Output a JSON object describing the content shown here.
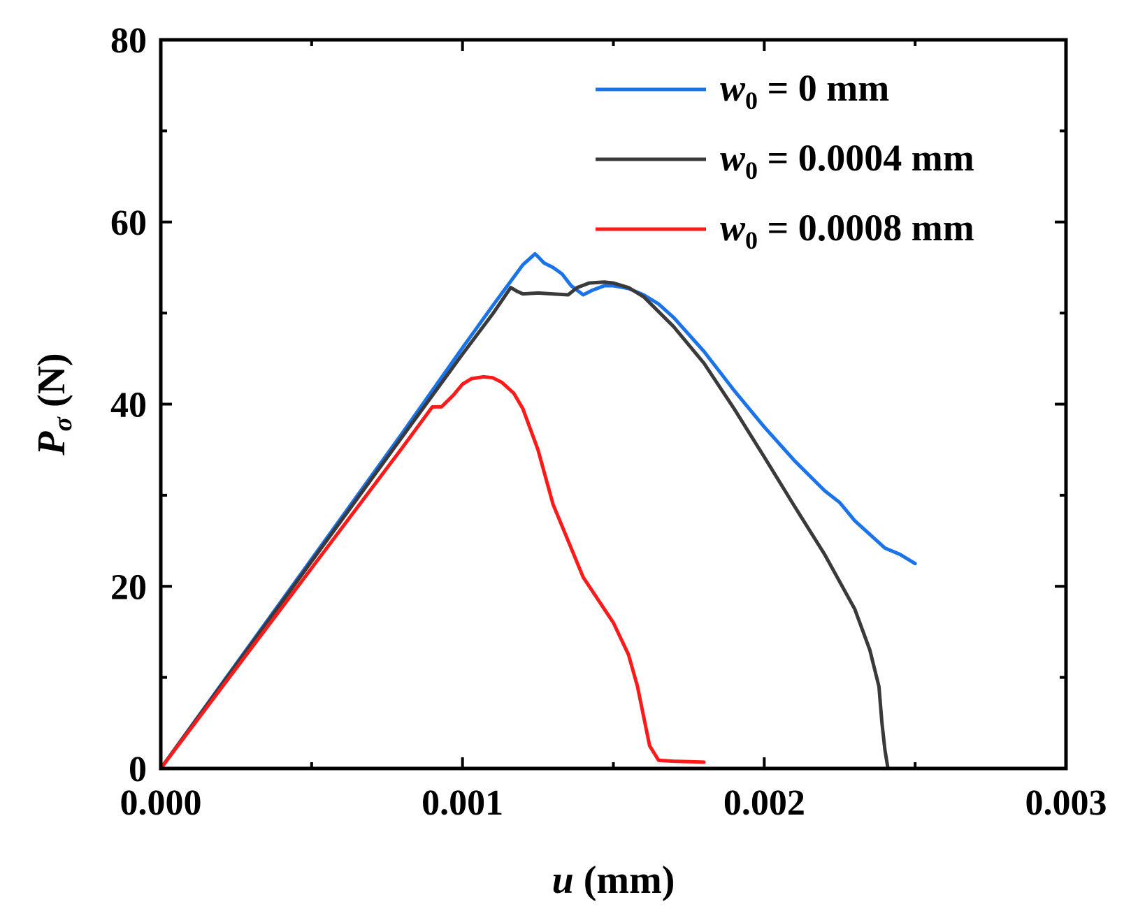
{
  "chart_data": {
    "type": "line",
    "title": "",
    "xlabel": {
      "var": "u",
      "unit": " (mm)"
    },
    "ylabel": {
      "var": "P",
      "sub": "σ",
      "unit": " (N)"
    },
    "xlim": [
      0,
      0.003
    ],
    "ylim": [
      0,
      80
    ],
    "x_ticks": [
      {
        "value": 0.0,
        "label": "0.000"
      },
      {
        "value": 0.001,
        "label": "0.001"
      },
      {
        "value": 0.002,
        "label": "0.002"
      },
      {
        "value": 0.003,
        "label": "0.003"
      }
    ],
    "y_ticks": [
      {
        "value": 0,
        "label": "0"
      },
      {
        "value": 20,
        "label": "20"
      },
      {
        "value": 40,
        "label": "40"
      },
      {
        "value": 60,
        "label": "60"
      },
      {
        "value": 80,
        "label": "80"
      }
    ],
    "x_minor_ticks": [
      0.0005,
      0.0015,
      0.0025
    ],
    "y_minor_ticks": [
      10,
      30,
      50,
      70
    ],
    "grid": false,
    "legend_position": "top-right",
    "series": [
      {
        "name": "w0 = 0 mm",
        "legend": {
          "var": "w",
          "sub": "0",
          "rest": " = 0 mm"
        },
        "color": "#1a73e8",
        "x": [
          0,
          0.0002,
          0.0004,
          0.0006,
          0.0008,
          0.0009,
          0.001,
          0.0011,
          0.0012,
          0.00124,
          0.00125,
          0.00127,
          0.0013,
          0.00133,
          0.00136,
          0.0014,
          0.00143,
          0.00147,
          0.0015,
          0.00155,
          0.0016,
          0.00165,
          0.0017,
          0.0018,
          0.0019,
          0.002,
          0.0021,
          0.0022,
          0.00225,
          0.0023,
          0.0024,
          0.00245,
          0.0025
        ],
        "y": [
          0,
          9.2,
          18.4,
          27.6,
          36.8,
          41.5,
          46.2,
          50.8,
          55.3,
          56.5,
          56.2,
          55.5,
          55.0,
          54.3,
          53.0,
          52.0,
          52.5,
          53.0,
          53.0,
          52.7,
          52.0,
          51.0,
          49.5,
          45.8,
          41.5,
          37.5,
          33.8,
          30.5,
          29.2,
          27.2,
          24.2,
          23.5,
          22.5
        ]
      },
      {
        "name": "w0 = 0.0004 mm",
        "legend": {
          "var": "w",
          "sub": "0",
          "rest": " = 0.0004 mm"
        },
        "color": "#3a3a3a",
        "x": [
          0,
          0.0002,
          0.0004,
          0.0006,
          0.0008,
          0.001,
          0.0011,
          0.00116,
          0.00118,
          0.0012,
          0.00125,
          0.0013,
          0.00135,
          0.00138,
          0.00142,
          0.00147,
          0.0015,
          0.00155,
          0.0016,
          0.0017,
          0.0018,
          0.0019,
          0.002,
          0.0021,
          0.0022,
          0.0023,
          0.00235,
          0.00238,
          0.00239,
          0.0024,
          0.00241
        ],
        "y": [
          0,
          9.1,
          18.2,
          27.3,
          36.4,
          45.5,
          49.9,
          52.8,
          52.4,
          52.1,
          52.2,
          52.1,
          52.0,
          52.8,
          53.3,
          53.4,
          53.3,
          52.8,
          51.8,
          48.5,
          44.5,
          39.5,
          34.2,
          28.8,
          23.5,
          17.5,
          13.0,
          9.0,
          5.0,
          2.0,
          0
        ]
      },
      {
        "name": "w0 = 0.0008 mm",
        "legend": {
          "var": "w",
          "sub": "0",
          "rest": " = 0.0008 mm"
        },
        "color": "#ff1a1a",
        "x": [
          0,
          0.0002,
          0.0004,
          0.0006,
          0.0008,
          0.0009,
          0.00093,
          0.00097,
          0.001,
          0.00103,
          0.00107,
          0.0011,
          0.00113,
          0.00117,
          0.0012,
          0.00125,
          0.0013,
          0.0014,
          0.0015,
          0.00155,
          0.00158,
          0.00162,
          0.00165,
          0.0017,
          0.0018
        ],
        "y": [
          0,
          8.8,
          17.6,
          26.4,
          35.2,
          39.7,
          39.7,
          41.0,
          42.2,
          42.8,
          43.0,
          42.9,
          42.4,
          41.2,
          39.5,
          35.0,
          29.0,
          21.0,
          16.0,
          12.5,
          9.0,
          2.5,
          0.9,
          0.8,
          0.7
        ]
      }
    ]
  }
}
